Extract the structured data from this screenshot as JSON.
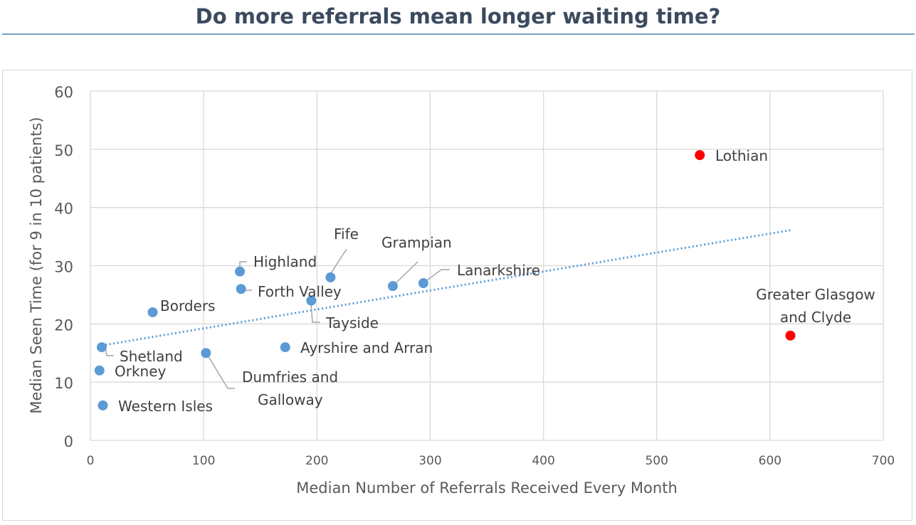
{
  "page_title": "Do more referrals mean longer waiting time?",
  "chart_data": {
    "type": "scatter",
    "title": "Do more referrals mean longer waiting time?",
    "xlabel": "Median Number of Referrals Received Every Month",
    "ylabel": "Median Seen Time (for 9 in 10 patients)",
    "xlim": [
      0,
      700
    ],
    "ylim": [
      0,
      60
    ],
    "x_ticks": [
      "0",
      "100",
      "200",
      "300",
      "400",
      "500",
      "600",
      "700"
    ],
    "y_ticks": [
      "0",
      "10",
      "20",
      "30",
      "40",
      "50",
      "60"
    ],
    "grid": true,
    "colors": {
      "default": "#5b9bd5",
      "highlight": "#ff0000",
      "trendline": "#5b9bd5",
      "grid": "#d9d9d9"
    },
    "points": [
      {
        "label": "Shetland",
        "x": 10,
        "y": 16,
        "color": "default"
      },
      {
        "label": "Orkney",
        "x": 8,
        "y": 12,
        "color": "default"
      },
      {
        "label": "Western Isles",
        "x": 11,
        "y": 6,
        "color": "default"
      },
      {
        "label": "Borders",
        "x": 55,
        "y": 22,
        "color": "default"
      },
      {
        "label": "Dumfries and Galloway",
        "x": 102,
        "y": 15,
        "color": "default"
      },
      {
        "label": "Highland",
        "x": 132,
        "y": 29,
        "color": "default"
      },
      {
        "label": "Forth Valley",
        "x": 133,
        "y": 26,
        "color": "default"
      },
      {
        "label": "Ayrshire and Arran",
        "x": 172,
        "y": 16,
        "color": "default"
      },
      {
        "label": "Tayside",
        "x": 195,
        "y": 24,
        "color": "default"
      },
      {
        "label": "Fife",
        "x": 212,
        "y": 28,
        "color": "default"
      },
      {
        "label": "Grampian",
        "x": 267,
        "y": 26.5,
        "color": "default"
      },
      {
        "label": "Lanarkshire",
        "x": 294,
        "y": 27,
        "color": "default"
      },
      {
        "label": "Lothian",
        "x": 538,
        "y": 49,
        "color": "highlight"
      },
      {
        "label": "Greater Glasgow and Clyde",
        "x": 618,
        "y": 18,
        "color": "highlight"
      }
    ],
    "trendline": {
      "type": "linear",
      "x": [
        10,
        618
      ],
      "y": [
        16.3,
        36.1
      ]
    }
  }
}
